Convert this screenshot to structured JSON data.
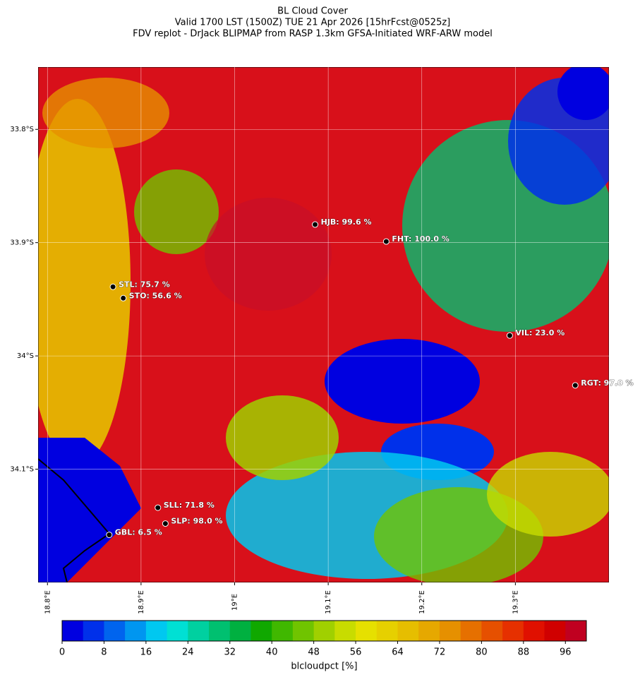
{
  "title": [
    "BL Cloud Cover",
    "Valid 1700 LST (1500Z) TUE 21 Apr 2026 [15hrFcst@0525z]",
    "FDV replot - DrJack BLIPMAP from RASP 1.3km GFSA-Initiated WRF-ARW model"
  ],
  "xlim": [
    18.79,
    19.4
  ],
  "ylim": [
    -34.2,
    -33.745
  ],
  "xticks": [
    {
      "value": 18.8,
      "label": "18.8°E"
    },
    {
      "value": 18.9,
      "label": "18.9°E"
    },
    {
      "value": 19.0,
      "label": "19°E"
    },
    {
      "value": 19.1,
      "label": "19.1°E"
    },
    {
      "value": 19.2,
      "label": "19.2°E"
    },
    {
      "value": 19.3,
      "label": "19.3°E"
    }
  ],
  "yticks": [
    {
      "value": -33.8,
      "label": "33.8°S"
    },
    {
      "value": -33.9,
      "label": "33.9°S"
    },
    {
      "value": -34.0,
      "label": "34°S"
    },
    {
      "value": -34.1,
      "label": "34.1°S"
    }
  ],
  "stations": [
    {
      "label": "HJB: 99.6 %",
      "lon": 19.086,
      "lat": -33.884
    },
    {
      "label": "FHT: 100.0 %",
      "lon": 19.162,
      "lat": -33.899
    },
    {
      "label": "STL: 75.7 %",
      "lon": 18.87,
      "lat": -33.939
    },
    {
      "label": "STO: 56.6 %",
      "lon": 18.881,
      "lat": -33.949
    },
    {
      "label": "VIL: 23.0 %",
      "lon": 19.294,
      "lat": -33.982
    },
    {
      "label": "RGT: 97.0 %",
      "lon": 19.364,
      "lat": -34.026
    },
    {
      "label": "SLL: 71.8 %",
      "lon": 18.918,
      "lat": -34.134
    },
    {
      "label": "SLP: 98.0 %",
      "lon": 18.926,
      "lat": -34.148
    },
    {
      "label": "GBL: 6.5 %",
      "lon": 18.866,
      "lat": -34.158
    }
  ],
  "colorbar": {
    "label": "blcloudpct [%]",
    "clim": [
      0,
      100
    ],
    "ticks": [
      0,
      8,
      16,
      24,
      32,
      40,
      48,
      56,
      64,
      72,
      80,
      88,
      96
    ],
    "colors": [
      "#0000e0",
      "#0030ea",
      "#0064ee",
      "#0096f0",
      "#00c8f0",
      "#00e0d4",
      "#00d0a0",
      "#00c070",
      "#00b040",
      "#10a800",
      "#40b800",
      "#70c400",
      "#a0d000",
      "#c8dc00",
      "#e6e000",
      "#e6d000",
      "#e6be00",
      "#e6a800",
      "#e69000",
      "#e67000",
      "#e65000",
      "#e63000",
      "#e01000",
      "#d00000",
      "#c00020"
    ]
  }
}
